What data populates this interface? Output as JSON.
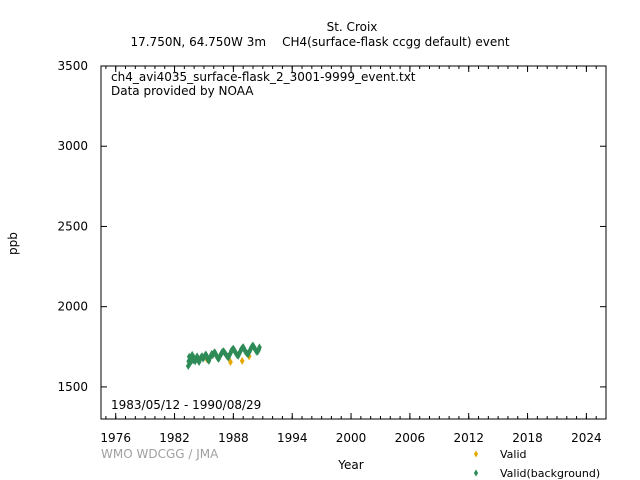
{
  "header": {
    "station": "St. Croix",
    "location": "17.750N, 64.750W 3m",
    "species": "CH4(surface-flask ccgg default) event"
  },
  "credit": "WMO WDCGG / JMA",
  "chart_data": {
    "type": "scatter",
    "title": "St. Croix",
    "xlabel": "Year",
    "ylabel": "ppb",
    "xlim": [
      1974.5,
      2026.0
    ],
    "ylim": [
      1300,
      3500
    ],
    "x_ticks": [
      "1976",
      "1982",
      "1988",
      "1994",
      "2000",
      "2006",
      "2012",
      "2018",
      "2024"
    ],
    "y_ticks": [
      "1500",
      "2000",
      "2500",
      "3000",
      "3500"
    ],
    "annotations": {
      "file": "ch4_avi4035_surface-flask_2_3001-9999_event.txt",
      "provider": "Data provided by NOAA",
      "period": "1983/05/12 - 1990/08/29"
    },
    "legend_position": "bottom-right",
    "series": [
      {
        "name": "Valid",
        "color": "#e6a800",
        "marker": "diamond",
        "points": [
          [
            1987.7,
            1655
          ],
          [
            1988.9,
            1662
          ],
          [
            1985.3,
            1672
          ],
          [
            1989.6,
            1690
          ]
        ]
      },
      {
        "name": "Valid(background)",
        "color": "#2e8b57",
        "marker": "diamond",
        "points": [
          [
            1983.4,
            1630
          ],
          [
            1983.45,
            1660
          ],
          [
            1983.5,
            1688
          ],
          [
            1983.6,
            1650
          ],
          [
            1983.7,
            1672
          ],
          [
            1983.8,
            1700
          ],
          [
            1983.9,
            1665
          ],
          [
            1984.0,
            1680
          ],
          [
            1984.1,
            1660
          ],
          [
            1984.2,
            1675
          ],
          [
            1984.3,
            1690
          ],
          [
            1984.4,
            1668
          ],
          [
            1984.5,
            1655
          ],
          [
            1984.6,
            1672
          ],
          [
            1984.7,
            1685
          ],
          [
            1984.8,
            1692
          ],
          [
            1984.9,
            1676
          ],
          [
            1985.0,
            1683
          ],
          [
            1985.1,
            1696
          ],
          [
            1985.2,
            1702
          ],
          [
            1985.3,
            1688
          ],
          [
            1985.4,
            1670
          ],
          [
            1985.5,
            1662
          ],
          [
            1985.6,
            1680
          ],
          [
            1985.7,
            1694
          ],
          [
            1985.8,
            1706
          ],
          [
            1985.9,
            1698
          ],
          [
            1986.0,
            1710
          ],
          [
            1986.1,
            1716
          ],
          [
            1986.2,
            1704
          ],
          [
            1986.3,
            1692
          ],
          [
            1986.4,
            1680
          ],
          [
            1986.5,
            1675
          ],
          [
            1986.6,
            1688
          ],
          [
            1986.7,
            1700
          ],
          [
            1986.8,
            1712
          ],
          [
            1986.9,
            1718
          ],
          [
            1987.0,
            1722
          ],
          [
            1987.1,
            1714
          ],
          [
            1987.2,
            1706
          ],
          [
            1987.3,
            1696
          ],
          [
            1987.4,
            1688
          ],
          [
            1987.5,
            1684
          ],
          [
            1987.6,
            1698
          ],
          [
            1987.7,
            1710
          ],
          [
            1987.8,
            1725
          ],
          [
            1987.9,
            1733
          ],
          [
            1988.0,
            1738
          ],
          [
            1988.1,
            1728
          ],
          [
            1988.2,
            1716
          ],
          [
            1988.3,
            1706
          ],
          [
            1988.4,
            1698
          ],
          [
            1988.5,
            1694
          ],
          [
            1988.6,
            1708
          ],
          [
            1988.7,
            1720
          ],
          [
            1988.8,
            1734
          ],
          [
            1988.9,
            1742
          ],
          [
            1989.0,
            1748
          ],
          [
            1989.1,
            1736
          ],
          [
            1989.2,
            1724
          ],
          [
            1989.3,
            1714
          ],
          [
            1989.4,
            1708
          ],
          [
            1989.5,
            1704
          ],
          [
            1989.6,
            1716
          ],
          [
            1989.7,
            1728
          ],
          [
            1989.8,
            1742
          ],
          [
            1989.9,
            1752
          ],
          [
            1990.0,
            1758
          ],
          [
            1990.1,
            1748
          ],
          [
            1990.2,
            1736
          ],
          [
            1990.3,
            1726
          ],
          [
            1990.4,
            1718
          ],
          [
            1990.5,
            1722
          ],
          [
            1990.6,
            1734
          ],
          [
            1990.66,
            1746
          ]
        ]
      }
    ]
  }
}
